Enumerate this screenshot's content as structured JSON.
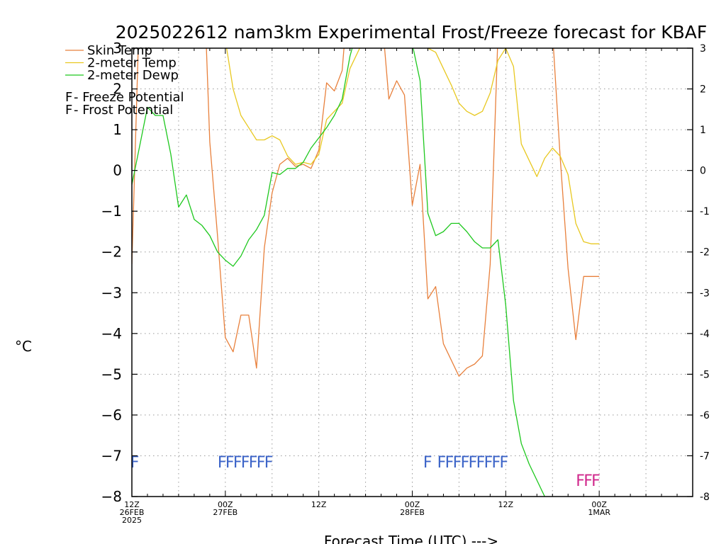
{
  "chart_data": {
    "type": "line",
    "title": "2025022612 nam3km Experimental Frost/Freeze forecast for KBAF",
    "ylabel": "°C",
    "xlabel": "Forecast Time (UTC) --->",
    "ylim": [
      -8,
      3
    ],
    "yticks": [
      "3",
      "2",
      "1",
      "0",
      "−1",
      "−2",
      "−3",
      "−4",
      "−5",
      "−6",
      "−7",
      "−8"
    ],
    "yticks_right": [
      "3",
      "2",
      "1",
      "0",
      "-1",
      "-2",
      "-3",
      "-4",
      "-5",
      "-6",
      "-7",
      "-8"
    ],
    "xlim": [
      0,
      36
    ],
    "x_unit": "hours from 12Z 26FEB2025",
    "xticks": [
      {
        "x": 0,
        "lines": [
          "12Z",
          "26FEB",
          "2025"
        ]
      },
      {
        "x": 6,
        "lines": [
          "00Z",
          "27FEB"
        ]
      },
      {
        "x": 12,
        "lines": [
          "12Z"
        ]
      },
      {
        "x": 18,
        "lines": [
          "00Z",
          "28FEB"
        ]
      },
      {
        "x": 24,
        "lines": [
          "12Z"
        ]
      },
      {
        "x": 30,
        "lines": [
          "00Z",
          "1MAR"
        ]
      }
    ],
    "grid": true,
    "legend_position": "top-left",
    "legend": [
      {
        "name": "Skin Temp",
        "color": "#e8803c"
      },
      {
        "name": "2-meter Temp",
        "color": "#e8c820"
      },
      {
        "name": "2-meter Dewp",
        "color": "#1ec81e"
      }
    ],
    "potential_legend": [
      {
        "letter": "F",
        "text": " - Freeze Potential",
        "color": "#d0288c"
      },
      {
        "letter": "F",
        "text": " - Frost Potential",
        "color": "#3c64c8"
      }
    ],
    "series": [
      {
        "name": "Skin Temp",
        "color": "#e8803c",
        "x": [
          0,
          0.5,
          1,
          1.5,
          2,
          2.5,
          3,
          3.5,
          4,
          4.5,
          5,
          5.5,
          6,
          6.5,
          7,
          7.5,
          8,
          8.5,
          9,
          9.5,
          10,
          10.5,
          11,
          11.5,
          12,
          12.5,
          13,
          13.5,
          14,
          14.5,
          15,
          15.5,
          16,
          16.5,
          17,
          17.5,
          18,
          18.5,
          19,
          19.5,
          20,
          20.5,
          21,
          21.5,
          22,
          22.5,
          23,
          23.5,
          24,
          24.5,
          25,
          25.5,
          26,
          26.5,
          27,
          27.5,
          28,
          28.5,
          29,
          29.5,
          30
        ],
        "values": [
          -2.3,
          4.2,
          5.5,
          6.1,
          6.4,
          6.5,
          6.6,
          6.5,
          6.4,
          6.0,
          0.7,
          -1.6,
          -4.1,
          -4.45,
          -3.55,
          -3.55,
          -4.85,
          -1.9,
          -0.55,
          0.15,
          0.3,
          0.1,
          0.15,
          0.05,
          0.5,
          2.15,
          1.95,
          2.45,
          4.8,
          5.6,
          6.1,
          6.0,
          4.0,
          1.75,
          2.2,
          1.85,
          -0.85,
          0.15,
          -3.15,
          -2.85,
          -4.25,
          -4.65,
          -5.05,
          -4.85,
          -4.75,
          -4.55,
          -2.3,
          3.3,
          6.0,
          6.2,
          6.3,
          6.3,
          6.2,
          5.8,
          3.4,
          0.3,
          -2.4,
          -4.15,
          -2.6,
          -2.6,
          -2.6
        ]
      },
      {
        "name": "2-meter Temp",
        "color": "#e8c820",
        "x": [
          0,
          0.5,
          1,
          1.5,
          2,
          2.5,
          3,
          3.5,
          4,
          4.5,
          5,
          5.5,
          6,
          6.5,
          7,
          7.5,
          8,
          8.5,
          9,
          9.5,
          10,
          10.5,
          11,
          11.5,
          12,
          12.5,
          13,
          13.5,
          14,
          14.5,
          15,
          15.5,
          16,
          16.5,
          17,
          17.5,
          18,
          18.5,
          19,
          19.5,
          20,
          20.5,
          21,
          21.5,
          22,
          22.5,
          23,
          23.5,
          24,
          24.5,
          25,
          25.5,
          26,
          26.5,
          27,
          27.5,
          28,
          28.5,
          29,
          29.5,
          30
        ],
        "values": [
          3.5,
          4.0,
          4.4,
          4.7,
          4.9,
          5.0,
          5.0,
          4.9,
          4.6,
          4.2,
          3.9,
          3.5,
          3.2,
          2.0,
          1.35,
          1.05,
          0.75,
          0.75,
          0.85,
          0.75,
          0.35,
          0.15,
          0.2,
          0.15,
          0.4,
          1.25,
          1.45,
          1.65,
          2.5,
          2.9,
          3.3,
          3.6,
          3.8,
          4.0,
          3.9,
          3.7,
          3.4,
          3.2,
          3.0,
          2.9,
          2.5,
          2.1,
          1.65,
          1.45,
          1.35,
          1.45,
          1.9,
          2.7,
          3.0,
          2.55,
          0.65,
          0.25,
          -0.15,
          0.3,
          0.55,
          0.35,
          -0.1,
          -1.3,
          -1.75,
          -1.8,
          -1.8
        ]
      },
      {
        "name": "2-meter Dewp",
        "color": "#1ec81e",
        "x": [
          0,
          0.5,
          1,
          1.5,
          2,
          2.5,
          3,
          3.5,
          4,
          4.5,
          5,
          5.5,
          6,
          6.5,
          7,
          7.5,
          8,
          8.5,
          9,
          9.5,
          10,
          10.5,
          11,
          11.5,
          12,
          12.5,
          13,
          13.5,
          14,
          14.5,
          15,
          15.5,
          16,
          16.5,
          17,
          17.5,
          18,
          18.5,
          19,
          19.5,
          20,
          20.5,
          21,
          21.5,
          22,
          22.5,
          23,
          23.5,
          24,
          24.5,
          25,
          25.5,
          26,
          26.5,
          27
        ],
        "values": [
          -0.35,
          0.6,
          1.55,
          1.35,
          1.35,
          0.4,
          -0.9,
          -0.6,
          -1.2,
          -1.35,
          -1.6,
          -2.0,
          -2.2,
          -2.35,
          -2.1,
          -1.7,
          -1.45,
          -1.1,
          -0.05,
          -0.1,
          0.05,
          0.05,
          0.2,
          0.55,
          0.8,
          1.05,
          1.35,
          1.75,
          2.8,
          3.5,
          4.0,
          4.2,
          4.3,
          4.1,
          3.9,
          3.5,
          3.1,
          2.2,
          -1.05,
          -1.6,
          -1.5,
          -1.3,
          -1.3,
          -1.5,
          -1.75,
          -1.9,
          -1.9,
          -1.7,
          -3.3,
          -5.65,
          -6.7,
          -7.2,
          -7.6,
          -8.0,
          -8.3
        ]
      }
    ],
    "frost_potential": {
      "color": "#3c64c8",
      "y": -7.15,
      "groups": [
        {
          "x_start": -0.1,
          "letters": "F"
        },
        {
          "x_start": 5.5,
          "letters": "FFFFFFF"
        },
        {
          "x_start": 18.7,
          "letters": "F"
        },
        {
          "x_start": 19.6,
          "letters": "FFFFFFFFF"
        }
      ]
    },
    "freeze_potential": {
      "color": "#d0288c",
      "y": -7.6,
      "groups": [
        {
          "x_start": 28.5,
          "letters": "FFF"
        }
      ]
    }
  }
}
